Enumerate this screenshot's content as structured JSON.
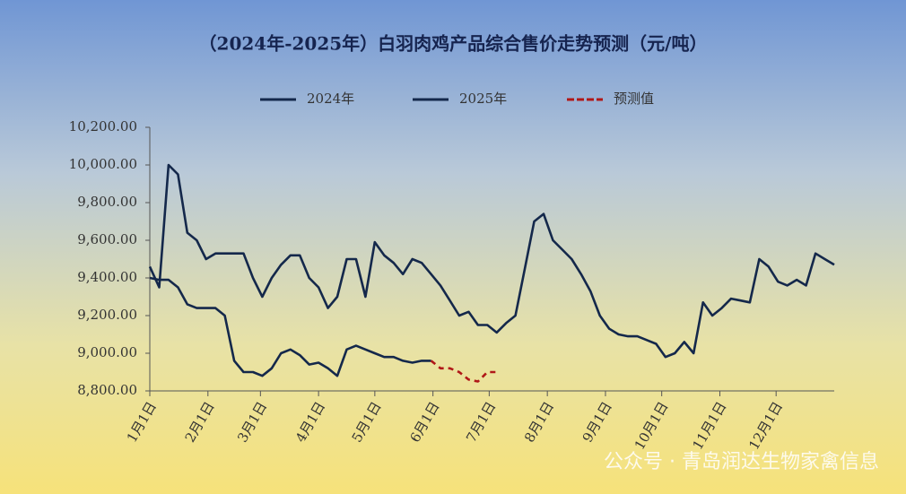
{
  "chart_data": {
    "type": "line",
    "title": "（2024年-2025年）白羽肉鸡产品综合售价走势预测（元/吨）",
    "watermark": "公众号 · 青岛润达生物家禽信息",
    "x": [
      0,
      5,
      10,
      15,
      20,
      25,
      30,
      35,
      40,
      45,
      50,
      55,
      60,
      65,
      70,
      75,
      80,
      85,
      90,
      95,
      100,
      105,
      110,
      115,
      120,
      125,
      130,
      135,
      140,
      145,
      150,
      155,
      160,
      165,
      170,
      175,
      180,
      185,
      190,
      195,
      200,
      205,
      210,
      215,
      220,
      225,
      230,
      235,
      240,
      245,
      250,
      255,
      260,
      265,
      270,
      275,
      280,
      285,
      290,
      295,
      300,
      305,
      310,
      315,
      320,
      325,
      330,
      335,
      340,
      345,
      350,
      355,
      360,
      365
    ],
    "xlim": [
      0,
      365
    ],
    "xticks": [
      {
        "value": 0,
        "label": "1月1日"
      },
      {
        "value": 31,
        "label": "2月1日"
      },
      {
        "value": 59,
        "label": "3月1日"
      },
      {
        "value": 90,
        "label": "4月1日"
      },
      {
        "value": 120,
        "label": "5月1日"
      },
      {
        "value": 151,
        "label": "6月1日"
      },
      {
        "value": 181,
        "label": "7月1日"
      },
      {
        "value": 212,
        "label": "8月1日"
      },
      {
        "value": 243,
        "label": "9月1日"
      },
      {
        "value": 273,
        "label": "10月1日"
      },
      {
        "value": 304,
        "label": "11月1日"
      },
      {
        "value": 334,
        "label": "12月1日"
      }
    ],
    "ylim": [
      8800,
      10200
    ],
    "yticks": [
      {
        "value": 8800,
        "label": "8,800.00"
      },
      {
        "value": 9000,
        "label": "9,000.00"
      },
      {
        "value": 9200,
        "label": "9,200.00"
      },
      {
        "value": 9400,
        "label": "9,400.00"
      },
      {
        "value": 9600,
        "label": "9,600.00"
      },
      {
        "value": 9800,
        "label": "9,800.00"
      },
      {
        "value": 10000,
        "label": "10,000.00"
      },
      {
        "value": 10200,
        "label": "10,200.00"
      }
    ],
    "series": [
      {
        "name": "2024年",
        "color": "#14284b",
        "values": [
          9460,
          9350,
          10000,
          9950,
          9640,
          9600,
          9500,
          9530,
          9530,
          9530,
          9530,
          9400,
          9300,
          9400,
          9470,
          9520,
          9520,
          9400,
          9350,
          9240,
          9300,
          9500,
          9500,
          9300,
          9590,
          9520,
          9480,
          9420,
          9500,
          9480,
          9420,
          9360,
          9280,
          9200,
          9220,
          9150,
          9150,
          9110,
          9160,
          9200,
          9450,
          9700,
          9740,
          9600,
          9550,
          9500,
          9420,
          9330,
          9200,
          9130,
          9100,
          9090,
          9090,
          9070,
          9050,
          8980,
          9000,
          9060,
          9000,
          9270,
          9200,
          9240,
          9290,
          9280,
          9270,
          9500,
          9460,
          9380,
          9360,
          9390,
          9360,
          9530,
          9500,
          9470
        ]
      },
      {
        "name": "2025年",
        "color": "#14284b",
        "values": [
          9400,
          9390,
          9390,
          9350,
          9260,
          9240,
          9240,
          9240,
          9200,
          8960,
          8900,
          8900,
          8880,
          8920,
          9000,
          9020,
          8990,
          8940,
          8950,
          8920,
          8880,
          9020,
          9040,
          9020,
          9000,
          8980,
          8980,
          8960,
          8950,
          8960,
          8960,
          null,
          null,
          null,
          null,
          null,
          null,
          null,
          null,
          null,
          null,
          null,
          null,
          null,
          null,
          null,
          null,
          null,
          null,
          null,
          null,
          null,
          null,
          null,
          null,
          null,
          null,
          null,
          null,
          null,
          null,
          null,
          null,
          null,
          null,
          null,
          null,
          null,
          null,
          null,
          null,
          null,
          null,
          null
        ]
      },
      {
        "name": "预测值",
        "color": "#b01818",
        "dashed": true,
        "values": [
          null,
          null,
          null,
          null,
          null,
          null,
          null,
          null,
          null,
          null,
          null,
          null,
          null,
          null,
          null,
          null,
          null,
          null,
          null,
          null,
          null,
          null,
          null,
          null,
          null,
          null,
          null,
          null,
          null,
          null,
          8960,
          8920,
          8920,
          8900,
          8860,
          8850,
          8900,
          8900,
          null,
          null,
          null,
          null,
          null,
          null,
          null,
          null,
          null,
          null,
          null,
          null,
          null,
          null,
          null,
          null,
          null,
          null,
          null,
          null,
          null,
          null,
          null,
          null,
          null,
          null,
          null,
          null,
          null,
          null,
          null,
          null,
          null,
          null,
          null,
          null
        ]
      }
    ]
  }
}
